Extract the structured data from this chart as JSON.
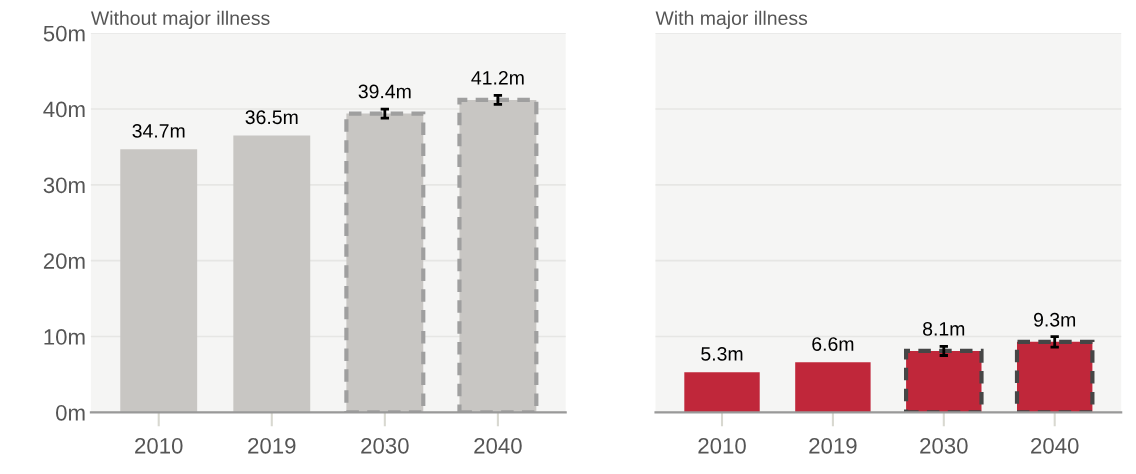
{
  "chart_data": [
    {
      "type": "bar",
      "title": "Without major illness",
      "categories": [
        "2010",
        "2019",
        "2030",
        "2040"
      ],
      "series": [
        {
          "color": "#c8c6c3",
          "values": [
            34.7,
            36.5,
            null,
            null
          ],
          "value_labels": [
            "34.7m",
            "36.5m",
            null,
            null
          ]
        },
        {
          "color": "#c8c6c3",
          "values": [
            null,
            null,
            39.4,
            41.2
          ],
          "value_labels": [
            null,
            null,
            "39.4m",
            "41.2m"
          ],
          "line_style": "dashed",
          "errors": [
            null,
            null,
            0.6,
            0.6
          ]
        }
      ],
      "ylim": [
        0,
        50
      ],
      "yticks": [
        {
          "value": 0,
          "label": "0m"
        },
        {
          "value": 10,
          "label": "10m"
        },
        {
          "value": 20,
          "label": "20m"
        },
        {
          "value": 30,
          "label": "30m"
        },
        {
          "value": 40,
          "label": "40m"
        },
        {
          "value": 50,
          "label": "50m"
        }
      ],
      "grid": "y"
    },
    {
      "type": "bar",
      "title": "With major illness",
      "categories": [
        "2010",
        "2019",
        "2030",
        "2040"
      ],
      "series": [
        {
          "color": "#c0273a",
          "values": [
            5.3,
            6.6,
            null,
            null
          ],
          "value_labels": [
            "5.3m",
            "6.6m",
            null,
            null
          ]
        },
        {
          "color": "#c0273a",
          "values": [
            null,
            null,
            8.1,
            9.3
          ],
          "value_labels": [
            null,
            null,
            "8.1m",
            "9.3m"
          ],
          "line_style": "dashed",
          "errors": [
            null,
            null,
            0.6,
            0.7
          ]
        }
      ],
      "ylim": [
        0,
        50
      ],
      "yticks": [
        0,
        10,
        20,
        30,
        40,
        50
      ],
      "grid": "y",
      "tick_labels": "x"
    }
  ]
}
